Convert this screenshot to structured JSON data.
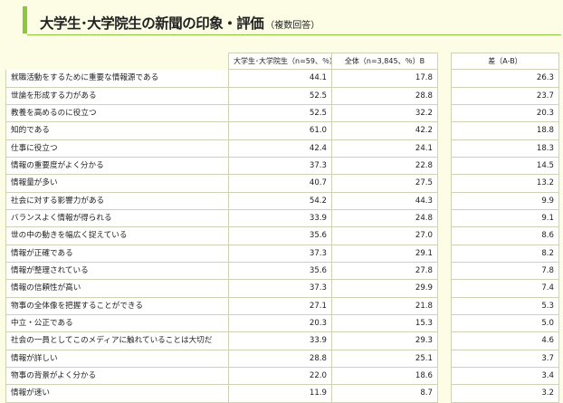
{
  "title": "大学生･大学院生の新聞の印象・評価",
  "title_note": "（複数回答）",
  "columns": {
    "a": "大学生･大学院生（n=59、％）A",
    "b": "全体（n=3,845、％）B",
    "diff": "差（A-B）"
  },
  "rows": [
    {
      "label": "就職活動をするために重要な情報源である",
      "a": "44.1",
      "b": "17.8",
      "diff": "26.3"
    },
    {
      "label": "世論を形成する力がある",
      "a": "52.5",
      "b": "28.8",
      "diff": "23.7"
    },
    {
      "label": "教養を高めるのに役立つ",
      "a": "52.5",
      "b": "32.2",
      "diff": "20.3"
    },
    {
      "label": "知的である",
      "a": "61.0",
      "b": "42.2",
      "diff": "18.8"
    },
    {
      "label": "仕事に役立つ",
      "a": "42.4",
      "b": "24.1",
      "diff": "18.3"
    },
    {
      "label": "情報の重要度がよく分かる",
      "a": "37.3",
      "b": "22.8",
      "diff": "14.5"
    },
    {
      "label": "情報量が多い",
      "a": "40.7",
      "b": "27.5",
      "diff": "13.2"
    },
    {
      "label": "社会に対する影響力がある",
      "a": "54.2",
      "b": "44.3",
      "diff": "9.9"
    },
    {
      "label": "バランスよく情報が得られる",
      "a": "33.9",
      "b": "24.8",
      "diff": "9.1"
    },
    {
      "label": "世の中の動きを幅広く捉えている",
      "a": "35.6",
      "b": "27.0",
      "diff": "8.6"
    },
    {
      "label": "情報が正確である",
      "a": "37.3",
      "b": "29.1",
      "diff": "8.2"
    },
    {
      "label": "情報が整理されている",
      "a": "35.6",
      "b": "27.8",
      "diff": "7.8"
    },
    {
      "label": "情報の信頼性が高い",
      "a": "37.3",
      "b": "29.9",
      "diff": "7.4"
    },
    {
      "label": "物事の全体像を把握することができる",
      "a": "27.1",
      "b": "21.8",
      "diff": "5.3"
    },
    {
      "label": "中立・公正である",
      "a": "20.3",
      "b": "15.3",
      "diff": "5.0"
    },
    {
      "label": "社会の一員としてこのメディアに触れていることは大切だ",
      "a": "33.9",
      "b": "29.3",
      "diff": "4.6"
    },
    {
      "label": "情報が詳しい",
      "a": "28.8",
      "b": "25.1",
      "diff": "3.7"
    },
    {
      "label": "物事の背景がよく分かる",
      "a": "22.0",
      "b": "18.6",
      "diff": "3.4"
    },
    {
      "label": "情報が速い",
      "a": "11.9",
      "b": "8.7",
      "diff": "3.2"
    }
  ]
}
